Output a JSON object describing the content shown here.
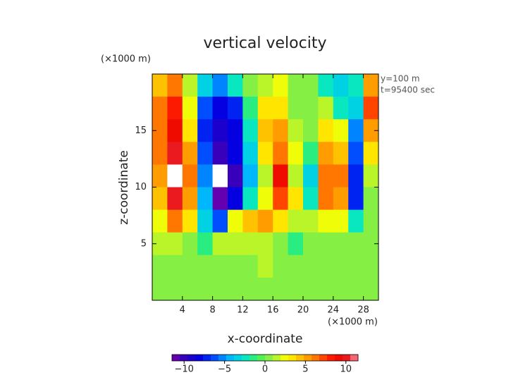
{
  "chart_data": {
    "type": "heatmap",
    "title": "vertical velocity",
    "y_unit": "(×1000 m)",
    "x_unit": "(×1000 m)",
    "annotations": [
      "y=100 m",
      "t=95400 sec"
    ],
    "x_label": "x-coordinate",
    "y_label": "z-coordinate",
    "xlim": [
      0,
      30
    ],
    "ylim": [
      0,
      20
    ],
    "xticks": [
      4,
      8,
      12,
      16,
      20,
      24,
      28
    ],
    "yticks": [
      5,
      10,
      15
    ],
    "x": [
      1,
      3,
      5,
      7,
      9,
      11,
      13,
      15,
      17,
      19,
      21,
      23,
      25,
      27,
      29
    ],
    "y": [
      19,
      17,
      15,
      13,
      11,
      9,
      7,
      5,
      3,
      1
    ],
    "z": [
      [
        4,
        6,
        1,
        -3,
        -5,
        -2,
        0,
        1,
        2,
        0,
        0,
        -2,
        -3,
        -2,
        5
      ],
      [
        6,
        8,
        2,
        -6,
        -8,
        -7,
        -1,
        3,
        3,
        0,
        0,
        1,
        -2,
        -3,
        7
      ],
      [
        6,
        9,
        3,
        -7,
        -9,
        -8,
        -2,
        4,
        5,
        1,
        0,
        3,
        2,
        -5,
        5
      ],
      [
        6,
        10,
        5,
        -6,
        -10,
        -8,
        -3,
        3,
        6,
        2,
        -1,
        5,
        4,
        -6,
        3
      ],
      [
        5,
        12,
        6,
        -5,
        -12,
        -10,
        -4,
        1,
        9,
        1,
        -3,
        6,
        6,
        -7,
        1
      ],
      [
        4,
        10,
        5,
        -4,
        -11,
        -8,
        -2,
        2,
        7,
        3,
        -2,
        6,
        5,
        -7,
        0
      ],
      [
        2,
        6,
        3,
        -3,
        -6,
        2,
        4,
        5,
        3,
        1,
        1,
        2,
        2,
        -2,
        0
      ],
      [
        1,
        1,
        0,
        -1,
        1,
        1,
        1,
        1,
        0,
        -1,
        0,
        0,
        0,
        0,
        0
      ],
      [
        0,
        0,
        0,
        0,
        0,
        0,
        0,
        1,
        0,
        0,
        0,
        0,
        0,
        0,
        0
      ],
      [
        0,
        0,
        0,
        0,
        0,
        0,
        0,
        0,
        0,
        0,
        0,
        0,
        0,
        0,
        0
      ]
    ],
    "colorbar": {
      "lim": [
        -11.5,
        11.5
      ],
      "steps": 24,
      "ticks": [
        {
          "value": -10,
          "label": "−10"
        },
        {
          "value": -5,
          "label": "−5"
        },
        0,
        5,
        10
      ],
      "colors": [
        "#7a00a8",
        "#2a00c0",
        "#0000e6",
        "#0050ff",
        "#00b4ff",
        "#00e6d2",
        "#3cf05a",
        "#9bf03c",
        "#ffff00",
        "#ffbe00",
        "#ff7800",
        "#ff1e00",
        "#e60000",
        "#ff8ca0"
      ],
      "over_color": "#ffffff"
    }
  }
}
